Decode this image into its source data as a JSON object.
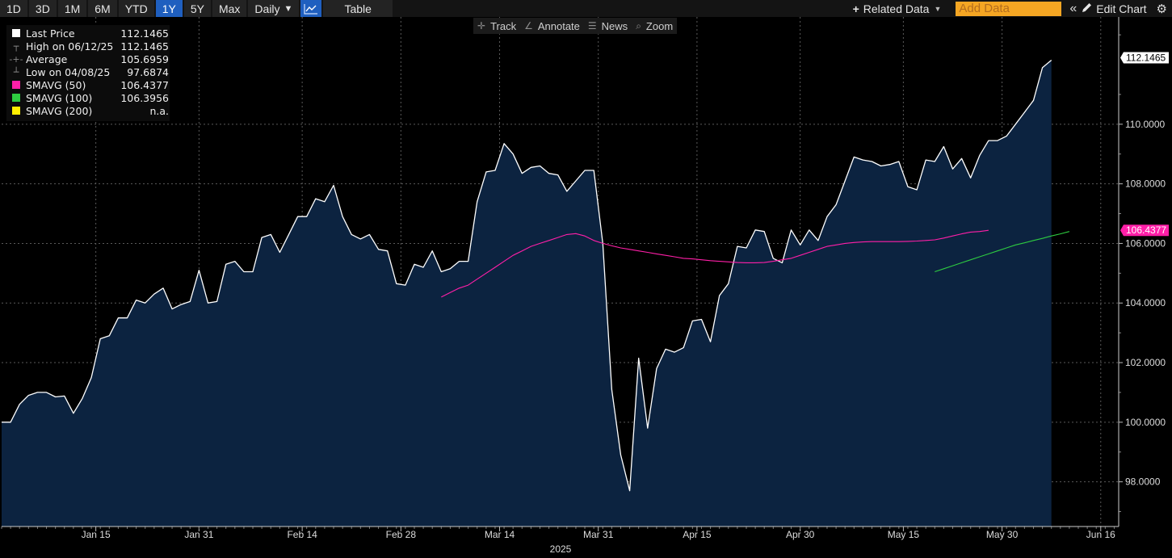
{
  "toolbar": {
    "periods": [
      "1D",
      "3D",
      "1M",
      "6M",
      "YTD",
      "1Y",
      "5Y",
      "Max"
    ],
    "active_period": "1Y",
    "frequency": "Daily",
    "frequency_caret": "▼",
    "table_label": "Table",
    "related_data_label": "Related Data",
    "add_data_placeholder": "Add Data",
    "edit_chart_label": "Edit Chart"
  },
  "subtoolbar": {
    "items": [
      "Track",
      "Annotate",
      "News",
      "Zoom"
    ]
  },
  "legend": {
    "rows": [
      {
        "label": "Last Price",
        "value": "112.1465",
        "color": "#ffffff",
        "marker": "square"
      },
      {
        "label": "High on 06/12/25",
        "value": "112.1465",
        "color": "#888888",
        "marker": "high"
      },
      {
        "label": "Average",
        "value": "105.6959",
        "color": "#888888",
        "marker": "avg"
      },
      {
        "label": "Low on 04/08/25",
        "value": "97.6874",
        "color": "#888888",
        "marker": "low"
      },
      {
        "label": "SMAVG (50)",
        "value": "106.4377",
        "color": "#ff1fa8",
        "marker": "square"
      },
      {
        "label": "SMAVG (100)",
        "value": "106.3956",
        "color": "#2ecc40",
        "marker": "square"
      },
      {
        "label": "SMAVG (200)",
        "value": "n.a.",
        "color": "#ffee00",
        "marker": "square"
      }
    ]
  },
  "chart_data": {
    "type": "area",
    "xlabel": "2025",
    "ylabel": "",
    "ylim": [
      96.5,
      113.6
    ],
    "y_ticks": [
      "98.0000",
      "100.0000",
      "102.0000",
      "104.0000",
      "106.0000",
      "108.0000",
      "110.0000"
    ],
    "y_tick_values": [
      98,
      100,
      102,
      104,
      106,
      108,
      110
    ],
    "x_tick_labels": [
      "Jan 15",
      "Jan 31",
      "Feb 14",
      "Feb 28",
      "Mar 14",
      "Mar 31",
      "Apr 15",
      "Apr 30",
      "May 15",
      "May 30",
      "Jun 16"
    ],
    "x_tick_index": [
      10.5,
      22,
      33.5,
      44.5,
      55.5,
      66.5,
      77.5,
      89,
      100.5,
      111.5,
      122.5
    ],
    "x_range": [
      0,
      124.5
    ],
    "grid": true,
    "legend_position": "top-left",
    "last_price_label": "112.1465",
    "smavg50_label": "106.4377",
    "series": [
      {
        "name": "Last Price",
        "color": "#ffffff",
        "fill": "#0c2340",
        "start_index": 0,
        "values": [
          100.0,
          100.0,
          100.6,
          100.9,
          101.0,
          101.0,
          100.85,
          100.88,
          100.3,
          100.8,
          101.5,
          102.8,
          102.9,
          103.5,
          103.5,
          104.1,
          104.0,
          104.3,
          104.5,
          103.8,
          103.95,
          104.05,
          105.1,
          104.0,
          104.05,
          105.3,
          105.4,
          105.05,
          105.05,
          106.2,
          106.3,
          105.7,
          106.3,
          106.9,
          106.9,
          107.5,
          107.4,
          107.95,
          106.9,
          106.3,
          106.15,
          106.3,
          105.8,
          105.75,
          104.65,
          104.6,
          105.3,
          105.2,
          105.75,
          105.05,
          105.15,
          105.4,
          105.4,
          107.4,
          108.4,
          108.45,
          109.35,
          109.0,
          108.35,
          108.55,
          108.6,
          108.35,
          108.3,
          107.75,
          108.1,
          108.45,
          108.45,
          106.0,
          101.1,
          98.9,
          97.7,
          102.15,
          99.8,
          101.8,
          102.45,
          102.35,
          102.5,
          103.4,
          103.45,
          102.7,
          104.25,
          104.65,
          105.9,
          105.85,
          106.45,
          106.4,
          105.5,
          105.35,
          106.45,
          105.95,
          106.45,
          106.1,
          106.9,
          107.3,
          108.1,
          108.9,
          108.8,
          108.75,
          108.6,
          108.65,
          108.75,
          107.9,
          107.8,
          108.8,
          108.75,
          109.25,
          108.5,
          108.85,
          108.2,
          108.95,
          109.45,
          109.45,
          109.6,
          110.0,
          110.4,
          110.8,
          111.9,
          112.15
        ]
      },
      {
        "name": "SMAVG (50)",
        "color": "#ff1fa8",
        "start_index": 49,
        "values": [
          104.2,
          104.35,
          104.5,
          104.6,
          104.8,
          105.0,
          105.2,
          105.4,
          105.6,
          105.75,
          105.9,
          106.0,
          106.1,
          106.2,
          106.3,
          106.33,
          106.25,
          106.1,
          106.0,
          105.92,
          105.85,
          105.8,
          105.75,
          105.7,
          105.65,
          105.6,
          105.55,
          105.5,
          105.48,
          105.45,
          105.42,
          105.4,
          105.38,
          105.36,
          105.35,
          105.35,
          105.36,
          105.4,
          105.45,
          105.5,
          105.6,
          105.7,
          105.8,
          105.9,
          105.95,
          106.0,
          106.03,
          106.05,
          106.06,
          106.06,
          106.06,
          106.06,
          106.07,
          106.08,
          106.1,
          106.12,
          106.18,
          106.25,
          106.32,
          106.38,
          106.4,
          106.44
        ]
      },
      {
        "name": "SMAVG (100)",
        "color": "#2ecc40",
        "start_index": 104,
        "values": [
          105.05,
          105.15,
          105.25,
          105.35,
          105.45,
          105.55,
          105.65,
          105.75,
          105.85,
          105.95,
          106.02,
          106.1,
          106.17,
          106.25,
          106.32,
          106.4
        ]
      }
    ]
  }
}
